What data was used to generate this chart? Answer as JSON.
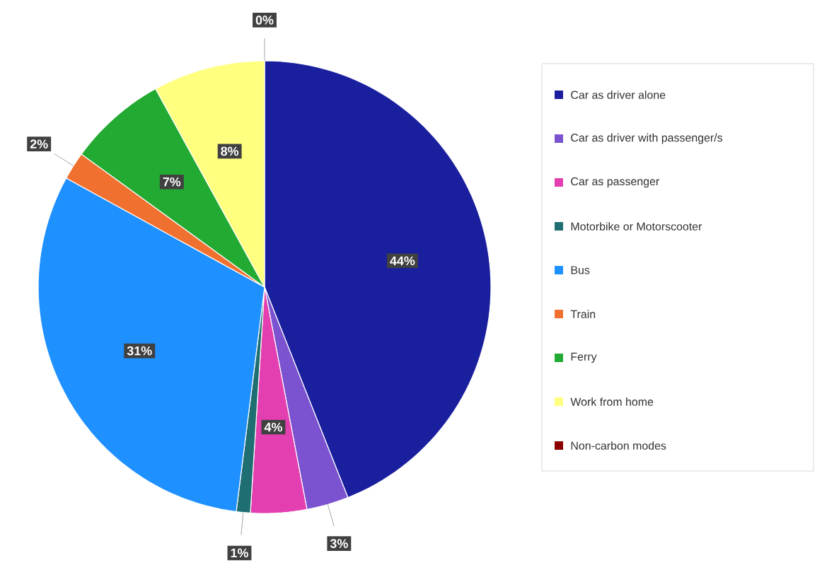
{
  "chart_data": {
    "type": "pie",
    "categories": [
      "Car as driver alone",
      "Car as driver with passenger/s",
      "Car as passenger",
      "Motorbike or Motorscooter",
      "Bus",
      "Train",
      "Ferry",
      "Work from home",
      "Non-carbon modes"
    ],
    "values": [
      44,
      3,
      4,
      1,
      31,
      2,
      7,
      8,
      0
    ],
    "value_labels": [
      "44%",
      "3%",
      "4%",
      "1%",
      "31%",
      "2%",
      "7%",
      "8%",
      "0%"
    ],
    "colors": [
      "#1a1f9e",
      "#7b52cf",
      "#e33fb0",
      "#1f6e72",
      "#1e90ff",
      "#f07030",
      "#22aa33",
      "#ffff80",
      "#8b0000"
    ],
    "legend": "right"
  }
}
